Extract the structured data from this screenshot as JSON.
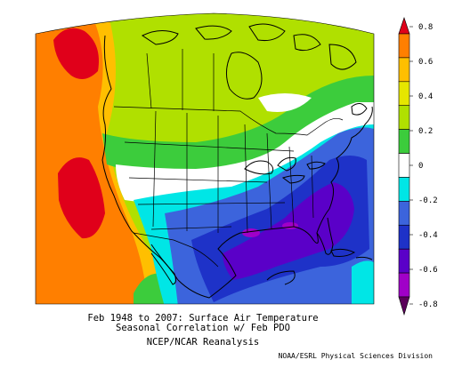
{
  "caption": {
    "line1": "Feb 1948 to 2007: Surface Air Temperature",
    "line2": "Seasonal Correlation w/ Feb PDO",
    "line3": "NCEP/NCAR Reanalysis"
  },
  "credit": "NOAA/ESRL Physical Sciences Division",
  "colorbar": {
    "labels": [
      "0.8",
      "0.6",
      "0.4",
      "0.2",
      "0",
      "-0.2",
      "-0.4",
      "-0.6",
      "-0.8"
    ],
    "colors": [
      "#e0001a",
      "#ff7f00",
      "#ffbf00",
      "#e6e600",
      "#b0e000",
      "#3ccc3c",
      "#ffffff",
      "#00e6e6",
      "#3c64dc",
      "#1e32c8",
      "#5a00c8",
      "#a000c8",
      "#5a005a"
    ]
  },
  "map_colors": {
    "strong_positive": "#e0001a",
    "positive": "#ff7f00",
    "weak_positive": "#ffbf00",
    "slight_positive": "#e6e600",
    "near_zero_pos": "#b0e000",
    "green": "#3ccc3c",
    "neutral": "#ffffff",
    "weak_negative": "#00e6e6",
    "negative": "#3c64dc",
    "strong_negative": "#1e32c8",
    "very_negative": "#5a00c8",
    "extreme_negative": "#a000c8"
  }
}
